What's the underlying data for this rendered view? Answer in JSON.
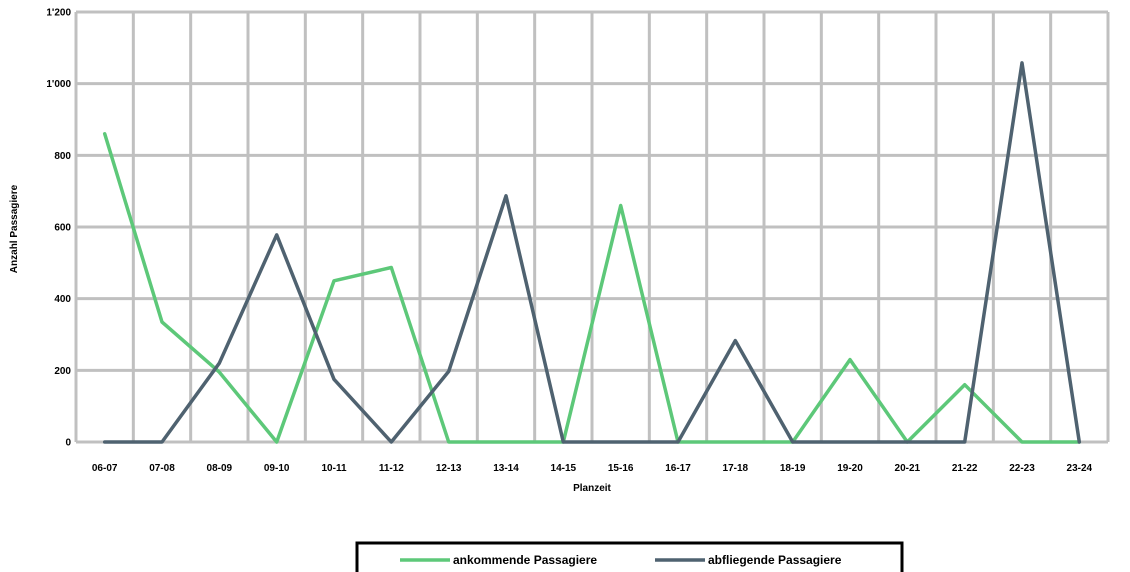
{
  "chart_data": {
    "type": "line",
    "xlabel": "Planzeit",
    "ylabel": "Anzahl Passagiere",
    "categories": [
      "06-07",
      "07-08",
      "08-09",
      "09-10",
      "10-11",
      "11-12",
      "12-13",
      "13-14",
      "14-15",
      "15-16",
      "16-17",
      "17-18",
      "18-19",
      "19-20",
      "20-21",
      "21-22",
      "22-23",
      "23-24"
    ],
    "ylim": [
      0,
      1200
    ],
    "yticks": [
      0,
      200,
      400,
      600,
      800,
      1000,
      1200
    ],
    "ytick_labels": [
      "0",
      "200",
      "400",
      "600",
      "800",
      "1'000",
      "1'200"
    ],
    "grid": true,
    "legend_position": "bottom",
    "series": [
      {
        "name": "ankommende Passagiere",
        "color": "#5dc879",
        "values": [
          860,
          335,
          195,
          0,
          450,
          487,
          0,
          0,
          0,
          660,
          0,
          0,
          0,
          230,
          0,
          160,
          0,
          0
        ]
      },
      {
        "name": "abfliegende Passagiere",
        "color": "#4f6270",
        "values": [
          0,
          0,
          220,
          578,
          175,
          0,
          197,
          687,
          0,
          0,
          0,
          283,
          0,
          0,
          0,
          0,
          1058,
          0
        ]
      }
    ]
  }
}
